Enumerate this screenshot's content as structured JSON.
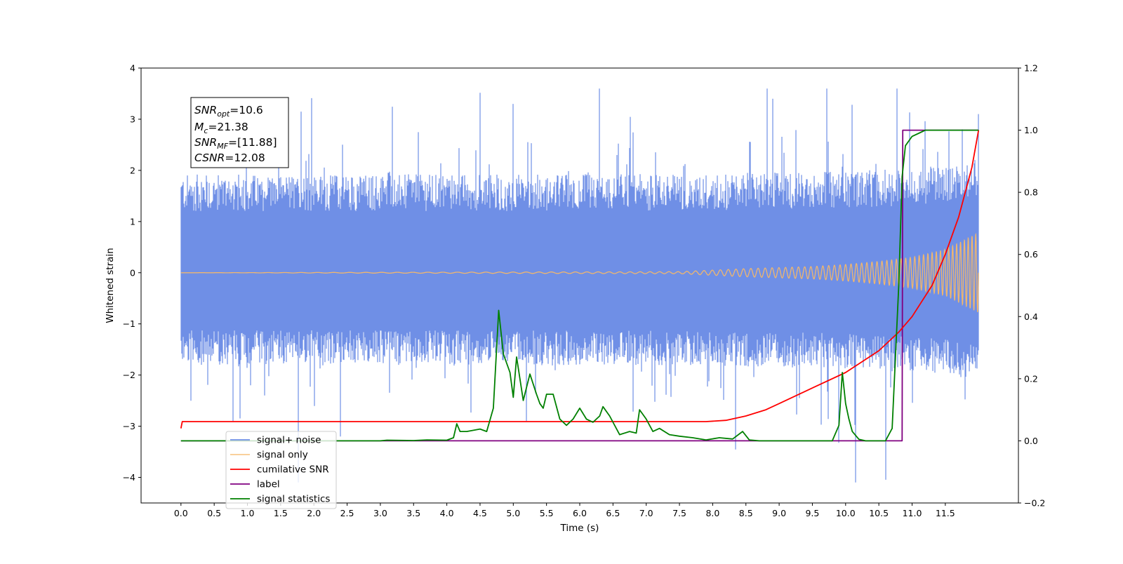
{
  "chart_data": {
    "type": "line",
    "xlabel": "Time (s)",
    "ylabel": "Whitened strain",
    "xlim": [
      -0.6,
      12.6
    ],
    "ylim": [
      -4.5,
      4.0
    ],
    "y2lim": [
      -0.2,
      1.2
    ],
    "x_ticks": [
      0.0,
      0.5,
      1.0,
      1.5,
      2.0,
      2.5,
      3.0,
      3.5,
      4.0,
      4.5,
      5.0,
      5.5,
      6.0,
      6.5,
      7.0,
      7.5,
      8.0,
      8.5,
      9.0,
      9.5,
      10.0,
      10.5,
      11.0,
      11.5
    ],
    "x_tick_labels": [
      "0.0",
      "0.5",
      "1.0",
      "1.5",
      "2.0",
      "2.5",
      "3.0",
      "3.5",
      "4.0",
      "4.5",
      "5.0",
      "5.5",
      "6.0",
      "6.5",
      "7.0",
      "7.5",
      "8.0",
      "8.5",
      "9.0",
      "9.5",
      "10.0",
      "10.5",
      "11.0",
      "11.5"
    ],
    "y_ticks": [
      -4,
      -3,
      -2,
      -1,
      0,
      1,
      2,
      3,
      4
    ],
    "y_tick_labels": [
      "−4",
      "−3",
      "−2",
      "−1",
      "0",
      "1",
      "2",
      "3",
      "4"
    ],
    "y2_ticks": [
      -0.2,
      0.0,
      0.2,
      0.4,
      0.6,
      0.8,
      1.0,
      1.2
    ],
    "y2_tick_labels": [
      "−0.2",
      "0.0",
      "0.2",
      "0.4",
      "0.6",
      "0.8",
      "1.0",
      "1.2"
    ],
    "grid": false,
    "legend_position": "bottom-left",
    "colors": {
      "signal_noise": "#6f8fe6",
      "signal_only": "#f5b868",
      "cumulative_snr": "#ff0000",
      "label": "#800080",
      "signal_statistics": "#008000"
    },
    "noise_envelope": {
      "x_range": [
        0.0,
        12.0
      ],
      "band": [
        -1.5,
        1.6
      ],
      "occasional_spikes_max": 3.6,
      "occasional_spikes_min": -4.1
    },
    "signal_only": {
      "x": [
        0.0,
        7.5,
        8.0,
        8.5,
        9.0,
        9.5,
        10.0,
        10.5,
        11.0,
        11.5,
        12.0
      ],
      "amplitude": [
        0.0,
        0.02,
        0.05,
        0.08,
        0.1,
        0.12,
        0.16,
        0.22,
        0.3,
        0.45,
        0.78
      ]
    },
    "series": [
      {
        "name": "cumilative SNR",
        "axis": "right",
        "x": [
          0.0,
          0.02,
          7.5,
          7.9,
          8.2,
          8.5,
          8.8,
          9.0,
          9.5,
          10.0,
          10.5,
          10.8,
          11.0,
          11.3,
          11.5,
          11.7,
          11.9,
          12.0
        ],
        "y": [
          0.04,
          0.062,
          0.062,
          0.062,
          0.066,
          0.08,
          0.1,
          0.12,
          0.17,
          0.22,
          0.29,
          0.35,
          0.4,
          0.5,
          0.6,
          0.72,
          0.88,
          1.0
        ]
      },
      {
        "name": "label",
        "axis": "right",
        "x": [
          0.0,
          10.85,
          10.86,
          12.0
        ],
        "y": [
          0.0,
          0.0,
          1.0,
          1.0
        ]
      },
      {
        "name": "signal statistics",
        "axis": "right",
        "x": [
          0.0,
          3.0,
          3.1,
          3.5,
          3.7,
          4.0,
          4.1,
          4.15,
          4.2,
          4.3,
          4.5,
          4.6,
          4.7,
          4.78,
          4.85,
          4.95,
          5.0,
          5.05,
          5.15,
          5.25,
          5.35,
          5.4,
          5.45,
          5.5,
          5.6,
          5.7,
          5.8,
          5.9,
          6.0,
          6.1,
          6.2,
          6.3,
          6.35,
          6.45,
          6.6,
          6.75,
          6.85,
          6.9,
          7.0,
          7.1,
          7.2,
          7.35,
          7.5,
          7.7,
          7.9,
          8.1,
          8.3,
          8.45,
          8.55,
          8.7,
          9.0,
          9.5,
          9.8,
          9.9,
          9.95,
          10.0,
          10.05,
          10.1,
          10.2,
          10.3,
          10.4,
          10.5,
          10.6,
          10.7,
          10.8,
          10.85,
          10.9,
          11.0,
          11.1,
          11.2,
          11.4,
          11.6,
          11.8,
          12.0
        ],
        "y": [
          0.0,
          0.0,
          0.002,
          0.001,
          0.003,
          0.002,
          0.01,
          0.055,
          0.03,
          0.03,
          0.038,
          0.03,
          0.105,
          0.42,
          0.28,
          0.22,
          0.14,
          0.27,
          0.13,
          0.215,
          0.15,
          0.12,
          0.105,
          0.15,
          0.15,
          0.07,
          0.05,
          0.07,
          0.105,
          0.07,
          0.06,
          0.08,
          0.11,
          0.08,
          0.02,
          0.03,
          0.025,
          0.1,
          0.07,
          0.03,
          0.04,
          0.02,
          0.015,
          0.01,
          0.003,
          0.01,
          0.006,
          0.03,
          0.003,
          0.0,
          0.0,
          0.0,
          0.0,
          0.05,
          0.22,
          0.12,
          0.07,
          0.03,
          0.005,
          0.0,
          0.0,
          0.0,
          0.0,
          0.04,
          0.5,
          0.85,
          0.95,
          0.98,
          0.99,
          1.0,
          1.0,
          1.0,
          1.0,
          1.0
        ]
      }
    ],
    "legend": [
      {
        "label": "signal+ noise",
        "color": "#6f8fe6"
      },
      {
        "label": "signal only",
        "color": "#f5b868"
      },
      {
        "label": "cumilative SNR",
        "color": "#ff0000"
      },
      {
        "label": "label",
        "color": "#800080"
      },
      {
        "label": "signal statistics",
        "color": "#008000"
      }
    ],
    "info_box": {
      "snr_opt_value": "=10.6",
      "mc_value": "=21.38",
      "snr_mf_value": "=[11.88]",
      "csnr_value": "=12.08",
      "snr_opt_main": "SNR",
      "snr_opt_sub": "opt",
      "mc_main": "M",
      "mc_sub": "c",
      "snr_mf_main": "SNR",
      "snr_mf_sub": "MF",
      "csnr_main": "CSNR"
    }
  }
}
